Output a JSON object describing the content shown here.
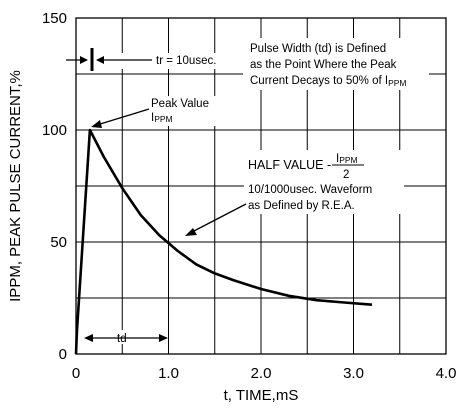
{
  "chart_data": {
    "type": "line",
    "xlabel": "t, TIME,mS",
    "ylabel": "IPPM, PEAK PULSE CURRENT,%",
    "xlim": [
      0,
      4.0
    ],
    "ylim": [
      0,
      150
    ],
    "x_ticks": [
      "0",
      "1.0",
      "2.0",
      "3.0",
      "4.0"
    ],
    "y_ticks": [
      "0",
      "50",
      "100",
      "150"
    ],
    "grid": true,
    "series": [
      {
        "x": [
          0,
          0.01,
          0.15,
          0.3,
          0.5,
          0.7,
          0.9,
          1.1,
          1.3,
          1.5,
          1.7,
          2.0,
          2.3,
          2.6,
          2.9,
          3.2
        ],
        "y": [
          0,
          10,
          100,
          88,
          74,
          62,
          53,
          46,
          40,
          36,
          33,
          29,
          26,
          24,
          23,
          22
        ]
      }
    ],
    "annotations": {
      "tr": "tr = 10usec.",
      "pulse_width_1": "Pulse Width (td) is Defined",
      "pulse_width_2": "as the Point Where the Peak",
      "pulse_width_3": "Current Decays to 50% of I",
      "pulse_width_3_sub": "PPM",
      "peak_1": "Peak Value",
      "peak_2": "I",
      "peak_2_sub": "PPM",
      "half_value": "HALF VALUE -",
      "half_num": "I",
      "half_num_sub": "PPM",
      "half_den": "2",
      "waveform_1": "10/1000usec. Waveform",
      "waveform_2": "as Defined by R.E.A.",
      "td": "td"
    }
  }
}
